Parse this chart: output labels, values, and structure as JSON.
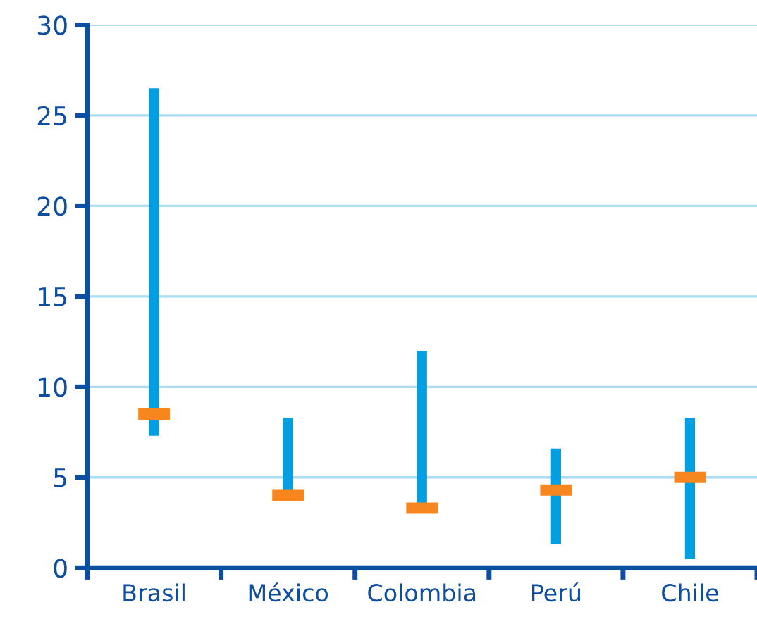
{
  "chart_data": {
    "type": "bar",
    "categories": [
      "Brasil",
      "México",
      "Colombia",
      "Perú",
      "Chile"
    ],
    "series": [
      {
        "type": "bar",
        "color": "#009fe3",
        "base": [
          7.3,
          4.2,
          3.1,
          1.3,
          0.5
        ],
        "values": [
          19.2,
          4.1,
          8.9,
          5.3,
          7.8
        ]
      },
      {
        "type": "scatter",
        "color": "#f7861e",
        "x": [
          "Brasil",
          "México",
          "Colombia",
          "Perú",
          "Chile"
        ],
        "values": [
          8.5,
          4.0,
          3.3,
          4.3,
          5.0
        ]
      }
    ],
    "ylim": [
      0,
      30
    ],
    "yticks": [
      0,
      5,
      10,
      15,
      20,
      25,
      30
    ],
    "grid": "y"
  }
}
